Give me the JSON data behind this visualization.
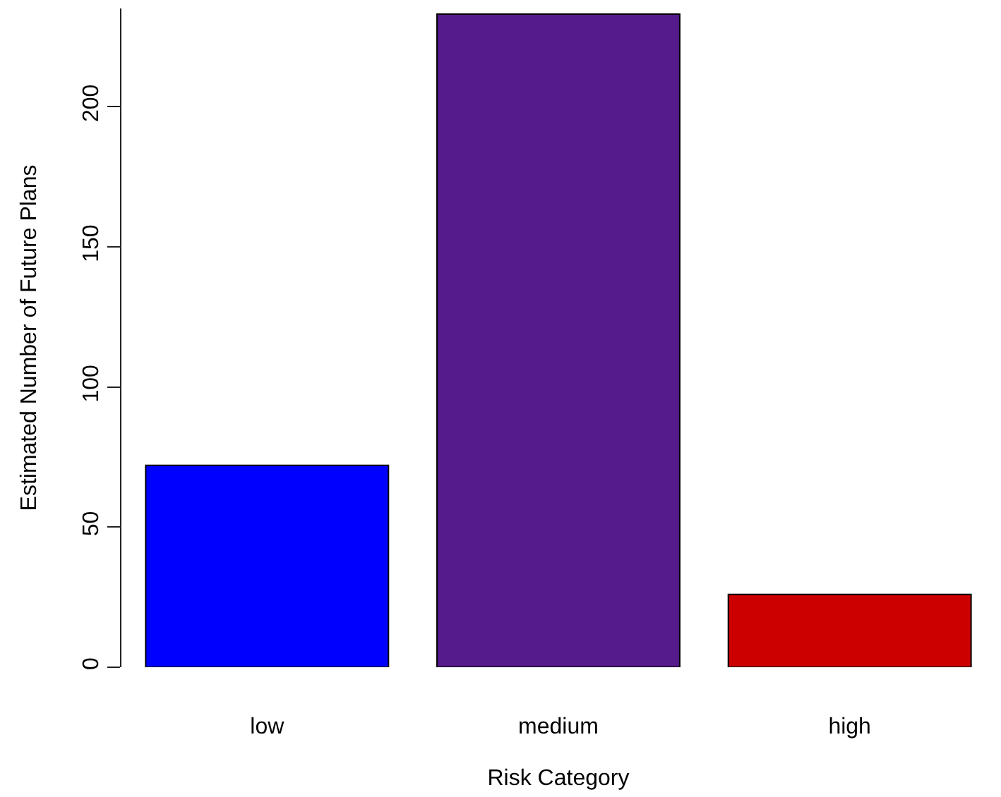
{
  "chart_data": {
    "type": "bar",
    "xlabel": "Risk Category",
    "ylabel": "Estimated Number of Future Plans",
    "categories": [
      "low",
      "medium",
      "high"
    ],
    "values": [
      72,
      233,
      26
    ],
    "colors": [
      "#0000ff",
      "#551a8b",
      "#cd0000"
    ],
    "ylim": [
      0,
      235
    ],
    "yticks": [
      0,
      50,
      100,
      150,
      200
    ]
  }
}
